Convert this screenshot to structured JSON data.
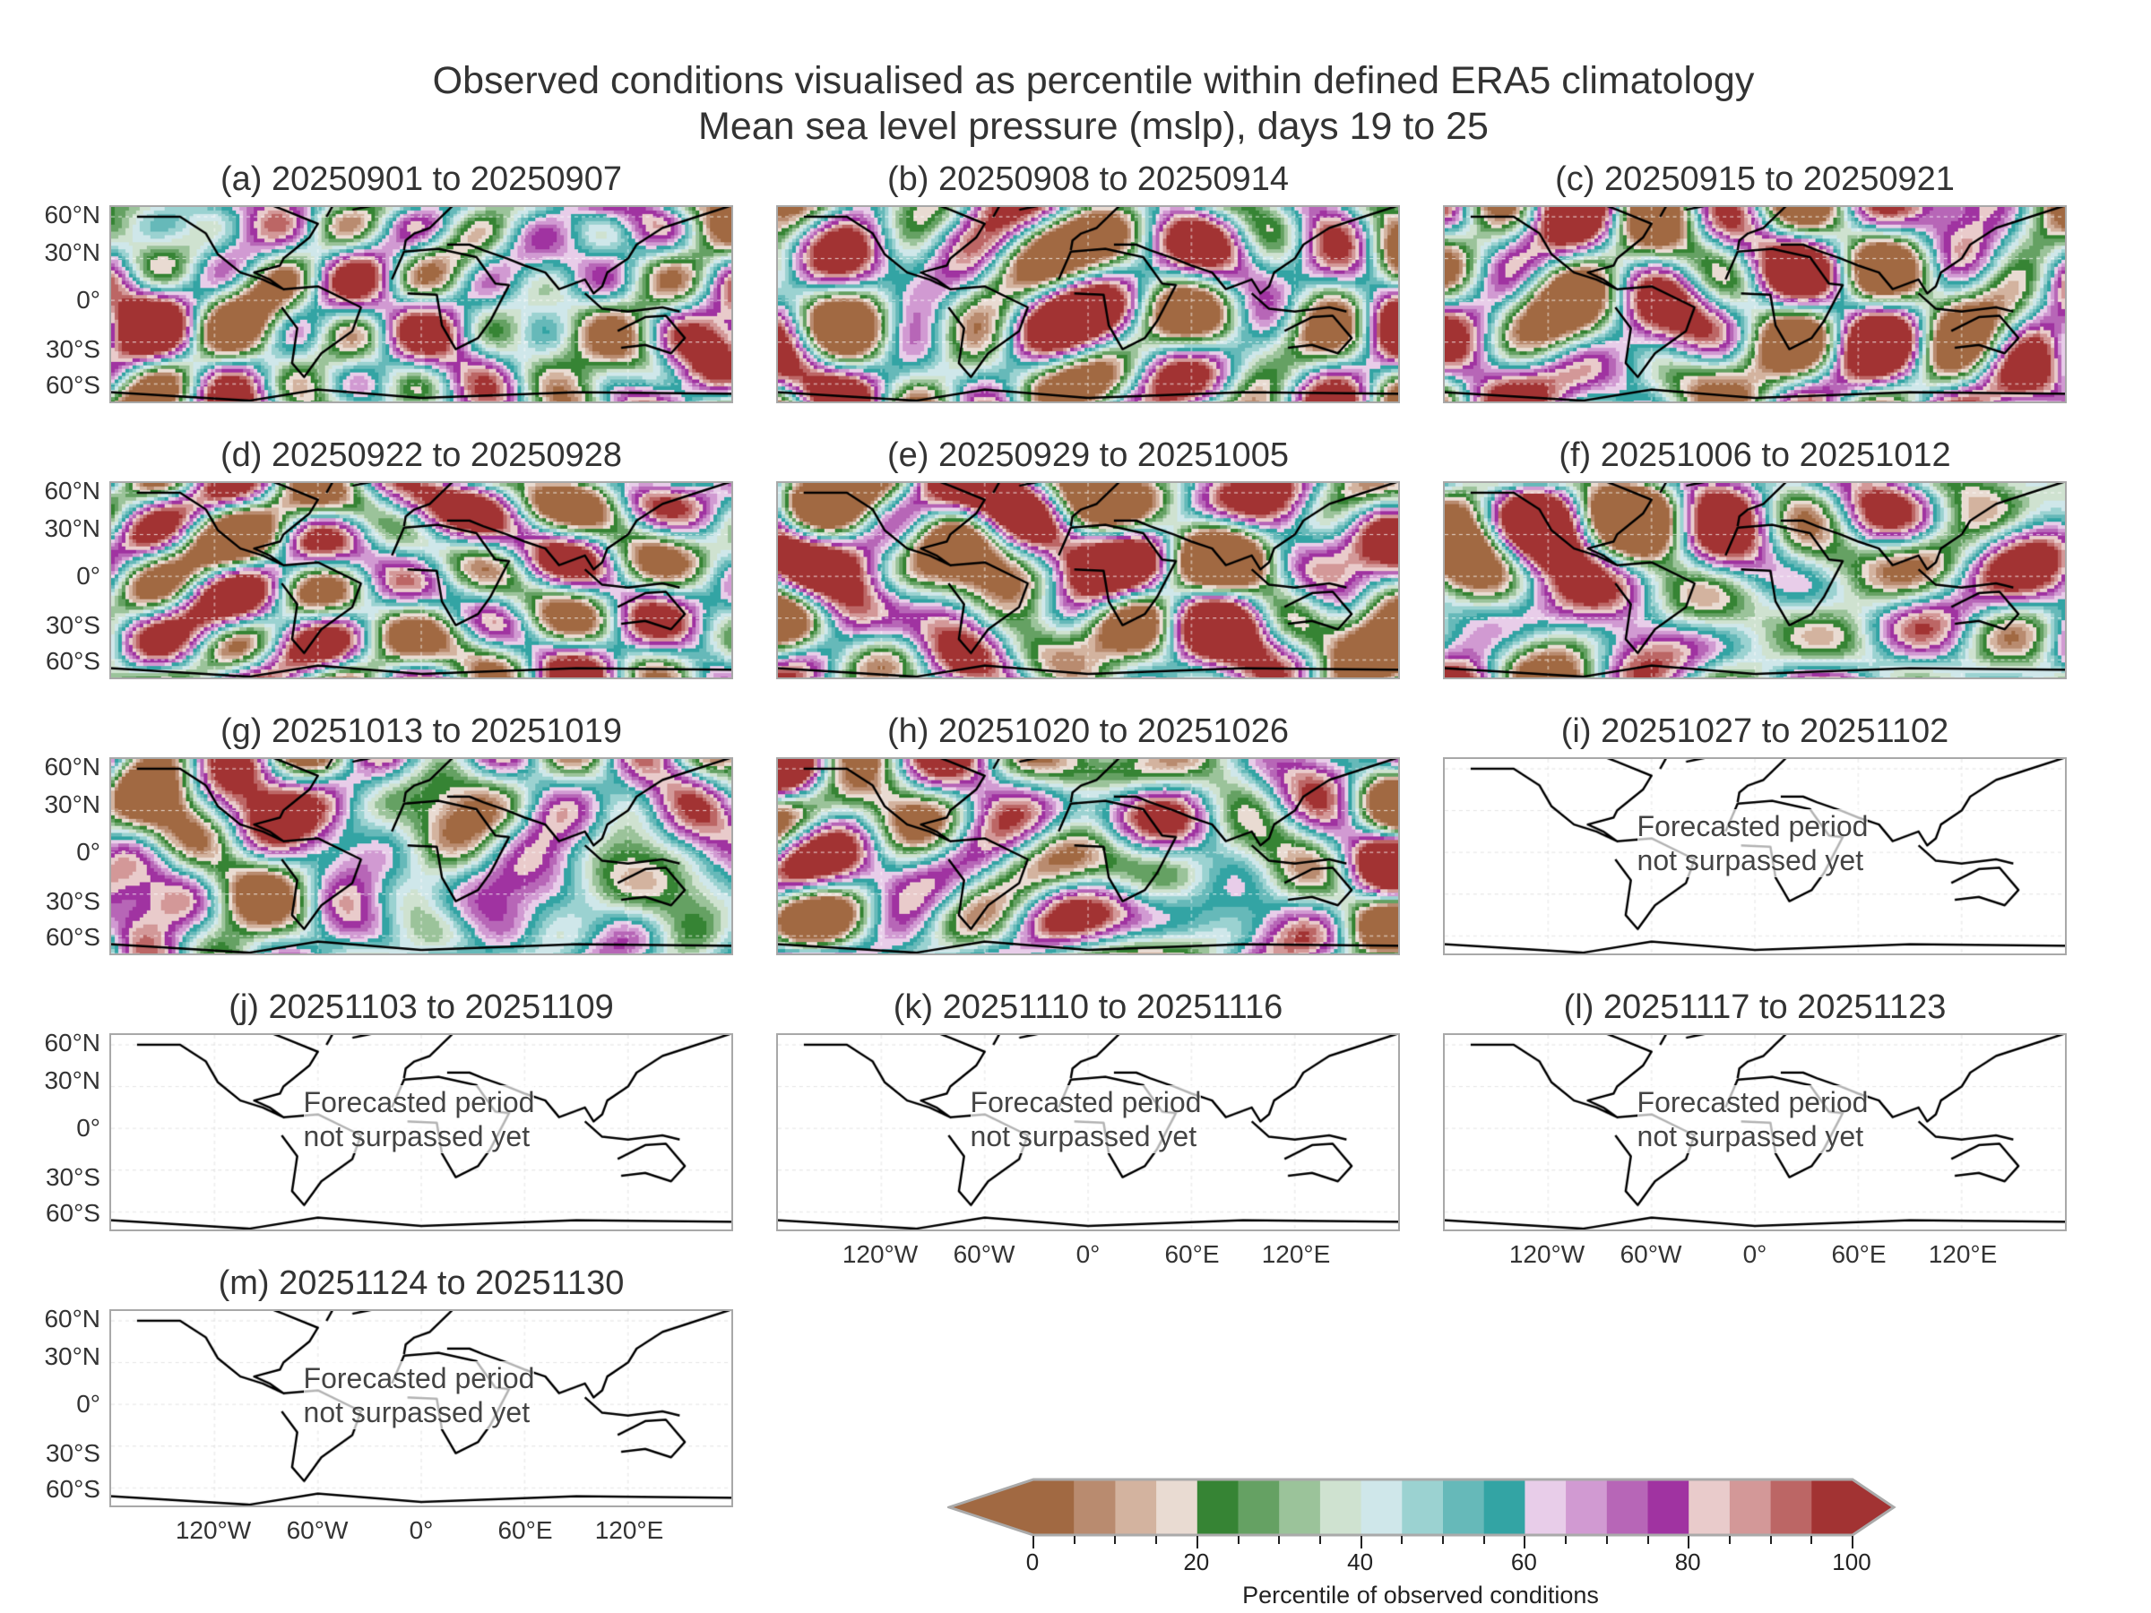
{
  "chart_data": {
    "type": "heatmap",
    "title": "Observed conditions visualised as percentile within defined ERA5 climatology",
    "subtitle": "Mean sea level pressure (mslp), days 19 to 25",
    "y_ticks": [
      "60°N",
      "30°N",
      "0°",
      "30°S",
      "60°S"
    ],
    "x_ticks": [
      "120°W",
      "60°W",
      "0°",
      "60°E",
      "120°E"
    ],
    "forecast_note_line1": "Forecasted period",
    "forecast_note_line2": "not surpassed yet",
    "panels": [
      {
        "title": "(a) 20250901 to 20250907",
        "status": "observed",
        "seed": 1
      },
      {
        "title": "(b) 20250908 to 20250914",
        "status": "observed",
        "seed": 2
      },
      {
        "title": "(c) 20250915 to 20250921",
        "status": "observed",
        "seed": 3
      },
      {
        "title": "(d) 20250922 to 20250928",
        "status": "observed",
        "seed": 4
      },
      {
        "title": "(e) 20250929 to 20251005",
        "status": "observed",
        "seed": 5
      },
      {
        "title": "(f) 20251006 to 20251012",
        "status": "observed",
        "seed": 6
      },
      {
        "title": "(g) 20251013 to 20251019",
        "status": "observed",
        "seed": 7
      },
      {
        "title": "(h) 20251020 to 20251026",
        "status": "observed",
        "seed": 8
      },
      {
        "title": "(i) 20251027 to 20251102",
        "status": "forecast"
      },
      {
        "title": "(j) 20251103 to 20251109",
        "status": "forecast"
      },
      {
        "title": "(k) 20251110 to 20251116",
        "status": "forecast"
      },
      {
        "title": "(l) 20251117 to 20251123",
        "status": "forecast"
      },
      {
        "title": "(m) 20251124 to 20251130",
        "status": "forecast"
      }
    ],
    "colorbar": {
      "label": "Percentile of observed conditions",
      "range": [
        0,
        100
      ],
      "ticks": [
        "0",
        "20",
        "40",
        "60",
        "80",
        "100"
      ],
      "extend": "both",
      "colors": [
        "#a16942",
        "#b98b6f",
        "#d3b39f",
        "#e9dbd2",
        "#368434",
        "#65a163",
        "#9bc39a",
        "#cfe2d0",
        "#cfe7ea",
        "#9bd2d1",
        "#66b9b9",
        "#33a4a4",
        "#e8cde9",
        "#d19ad2",
        "#b766b7",
        "#a033a1",
        "#e9cbcb",
        "#d39898",
        "#bc6665",
        "#a23333"
      ]
    }
  }
}
